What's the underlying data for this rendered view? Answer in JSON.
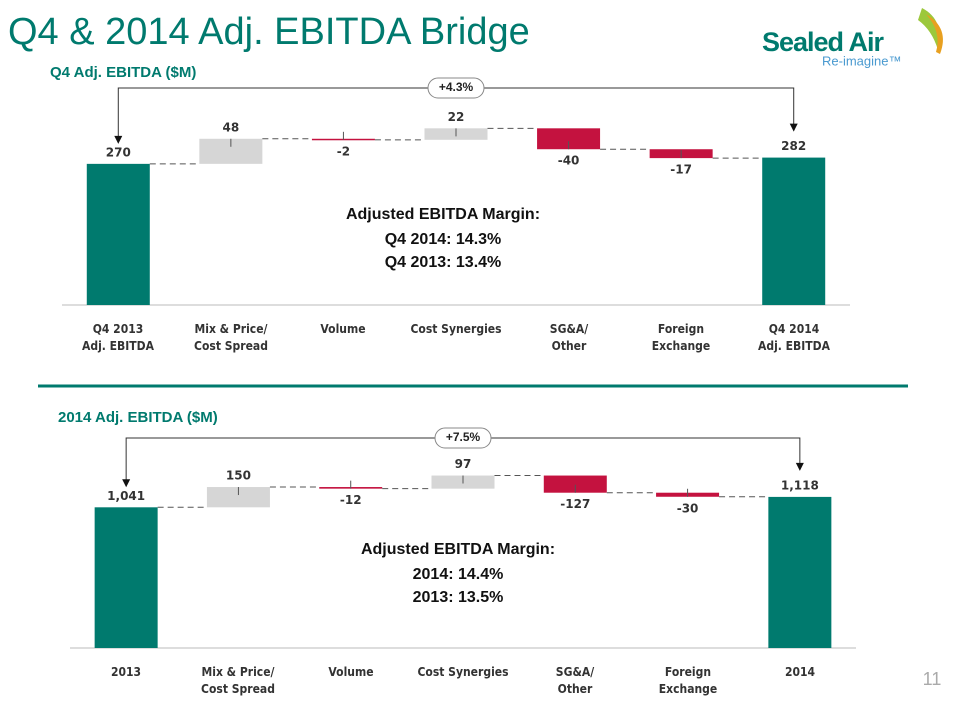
{
  "header": {
    "title": "Q4 & 2014 Adj. EBITDA Bridge",
    "logo": "Sealed Air",
    "tagline": "Re-imagine™"
  },
  "page_number": "11",
  "chart_data": [
    {
      "type": "waterfall",
      "title": "Q4 Adj. EBITDA ($M)",
      "categories": [
        "Q4 2013\nAdj. EBITDA",
        "Mix & Price/\nCost Spread",
        "Volume",
        "Cost Synergies",
        "SG&A/\nOther",
        "Foreign\nExchange",
        "Q4 2014\nAdj. EBITDA"
      ],
      "values": [
        270,
        48,
        -2,
        22,
        -40,
        -17,
        282
      ],
      "measure": [
        "total",
        "relative",
        "relative",
        "relative",
        "relative",
        "relative",
        "total"
      ],
      "colors": {
        "total": "#007a6e",
        "increase": "#d6d6d6",
        "decrease": "#c4123f"
      },
      "ylim": [
        0,
        440
      ],
      "annotation": "+4.3%",
      "margin_text": [
        "Adjusted EBITDA Margin:",
        "Q4 2014: 14.3%",
        "Q4 2013: 13.4%"
      ]
    },
    {
      "type": "waterfall",
      "title": "2014 Adj. EBITDA ($M)",
      "categories": [
        "2013",
        "Mix & Price/\nCost Spread",
        "Volume",
        "Cost Synergies",
        "SG&A/\nOther",
        "Foreign\nExchange",
        "2014"
      ],
      "values": [
        1041,
        150,
        -12,
        97,
        -127,
        -30,
        1118
      ],
      "value_labels": [
        "1,041",
        "150",
        "-12",
        "97",
        "-127",
        "-30",
        "1,118"
      ],
      "measure": [
        "total",
        "relative",
        "relative",
        "relative",
        "relative",
        "relative",
        "total"
      ],
      "colors": {
        "total": "#007a6e",
        "increase": "#d6d6d6",
        "decrease": "#c4123f"
      },
      "ylim": [
        0,
        1650
      ],
      "annotation": "+7.5%",
      "margin_text": [
        "Adjusted EBITDA Margin:",
        "2014: 14.4%",
        "2013: 13.5%"
      ]
    }
  ]
}
